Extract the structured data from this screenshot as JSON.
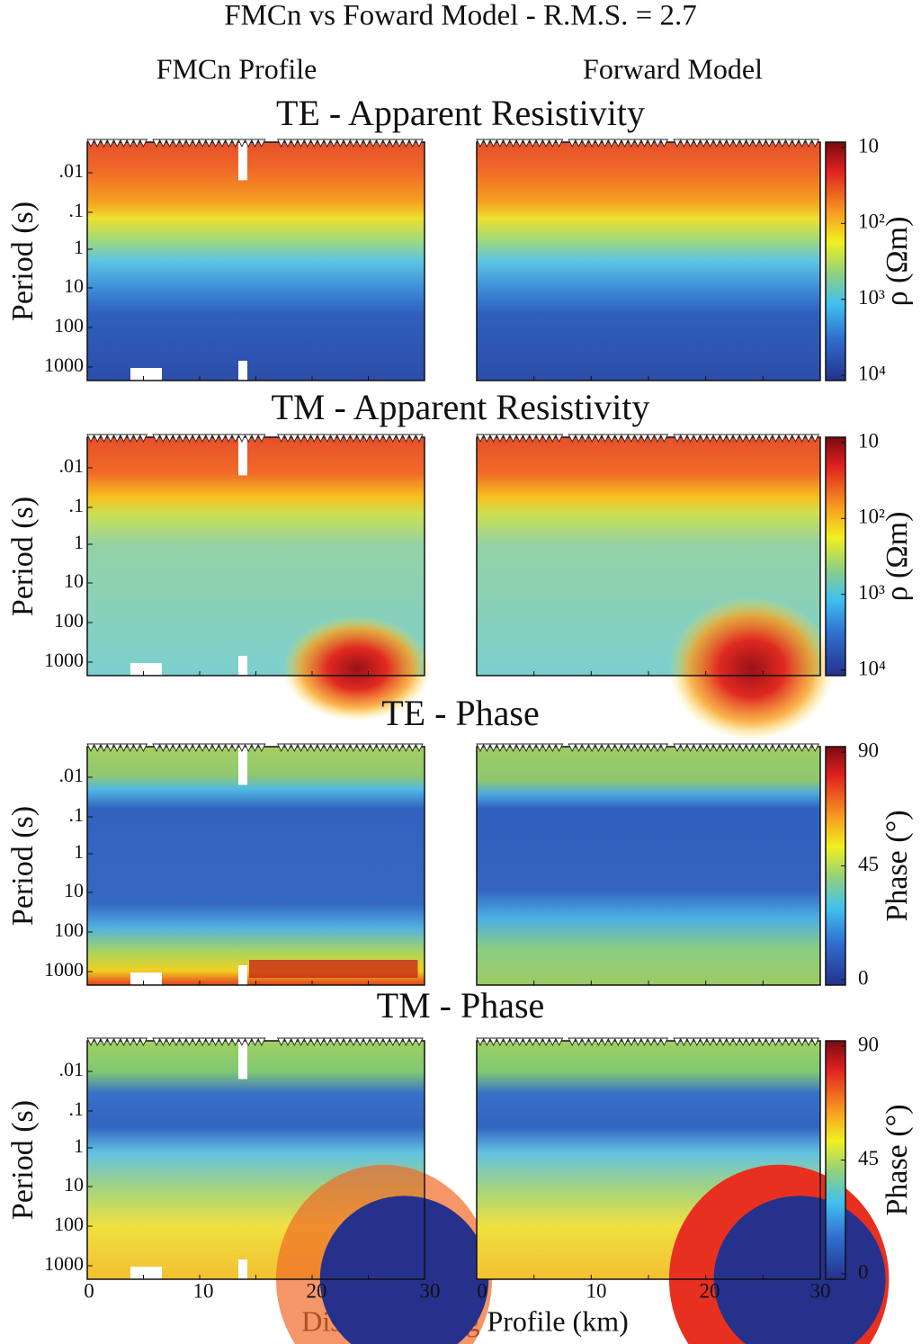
{
  "title": "FMCn vs Foward Model - R.M.S. = 2.7",
  "columns": [
    "FMCn Profile",
    "Forward Model"
  ],
  "panels": [
    {
      "title": "TE - Apparent Resistivity",
      "colorbar": {
        "label": "ρ (Ωm)",
        "ticks": [
          "10",
          "10²",
          "10³",
          "10⁴"
        ]
      }
    },
    {
      "title": "TM - Apparent Resistivity",
      "colorbar": {
        "label": "ρ (Ωm)",
        "ticks": [
          "10",
          "10²",
          "10³",
          "10⁴"
        ]
      }
    },
    {
      "title": "TE - Phase",
      "colorbar": {
        "label": "Phase (°)",
        "ticks": [
          "90",
          "45",
          "0"
        ]
      }
    },
    {
      "title": "TM - Phase",
      "colorbar": {
        "label": "Phase (°)",
        "ticks": [
          "90",
          "45",
          "0"
        ]
      }
    }
  ],
  "y_axis": {
    "label": "Period (s)",
    "ticks": [
      ".01",
      ".1",
      "1",
      "10",
      "100",
      "1000"
    ]
  },
  "x_axis": {
    "label": "Distance Along Profile (km)",
    "ticks": [
      "0",
      "10",
      "20",
      "30"
    ]
  }
}
